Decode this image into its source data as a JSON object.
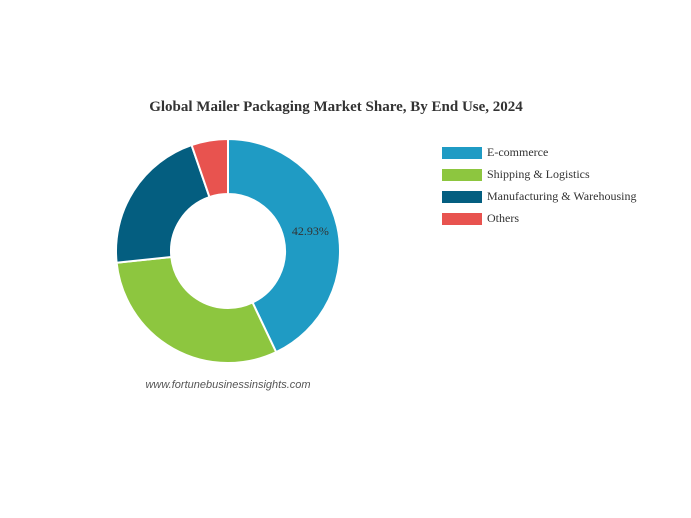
{
  "chart_data": {
    "type": "pie",
    "title": "Global Mailer Packaging Market Share, By End Use, 2024",
    "categories": [
      "E-commerce",
      "Shipping & Logistics",
      "Manufacturing & Warehousing",
      "Others"
    ],
    "values": [
      42.93,
      30.4,
      21.4,
      5.27
    ],
    "value_labels": [
      "42.93%",
      null,
      null,
      null
    ],
    "colors": [
      "#1f9bc4",
      "#8dc63f",
      "#045e80",
      "#e8534f"
    ],
    "donut": true,
    "legend": "right",
    "source": "www.fortunebusinessinsights.com"
  }
}
